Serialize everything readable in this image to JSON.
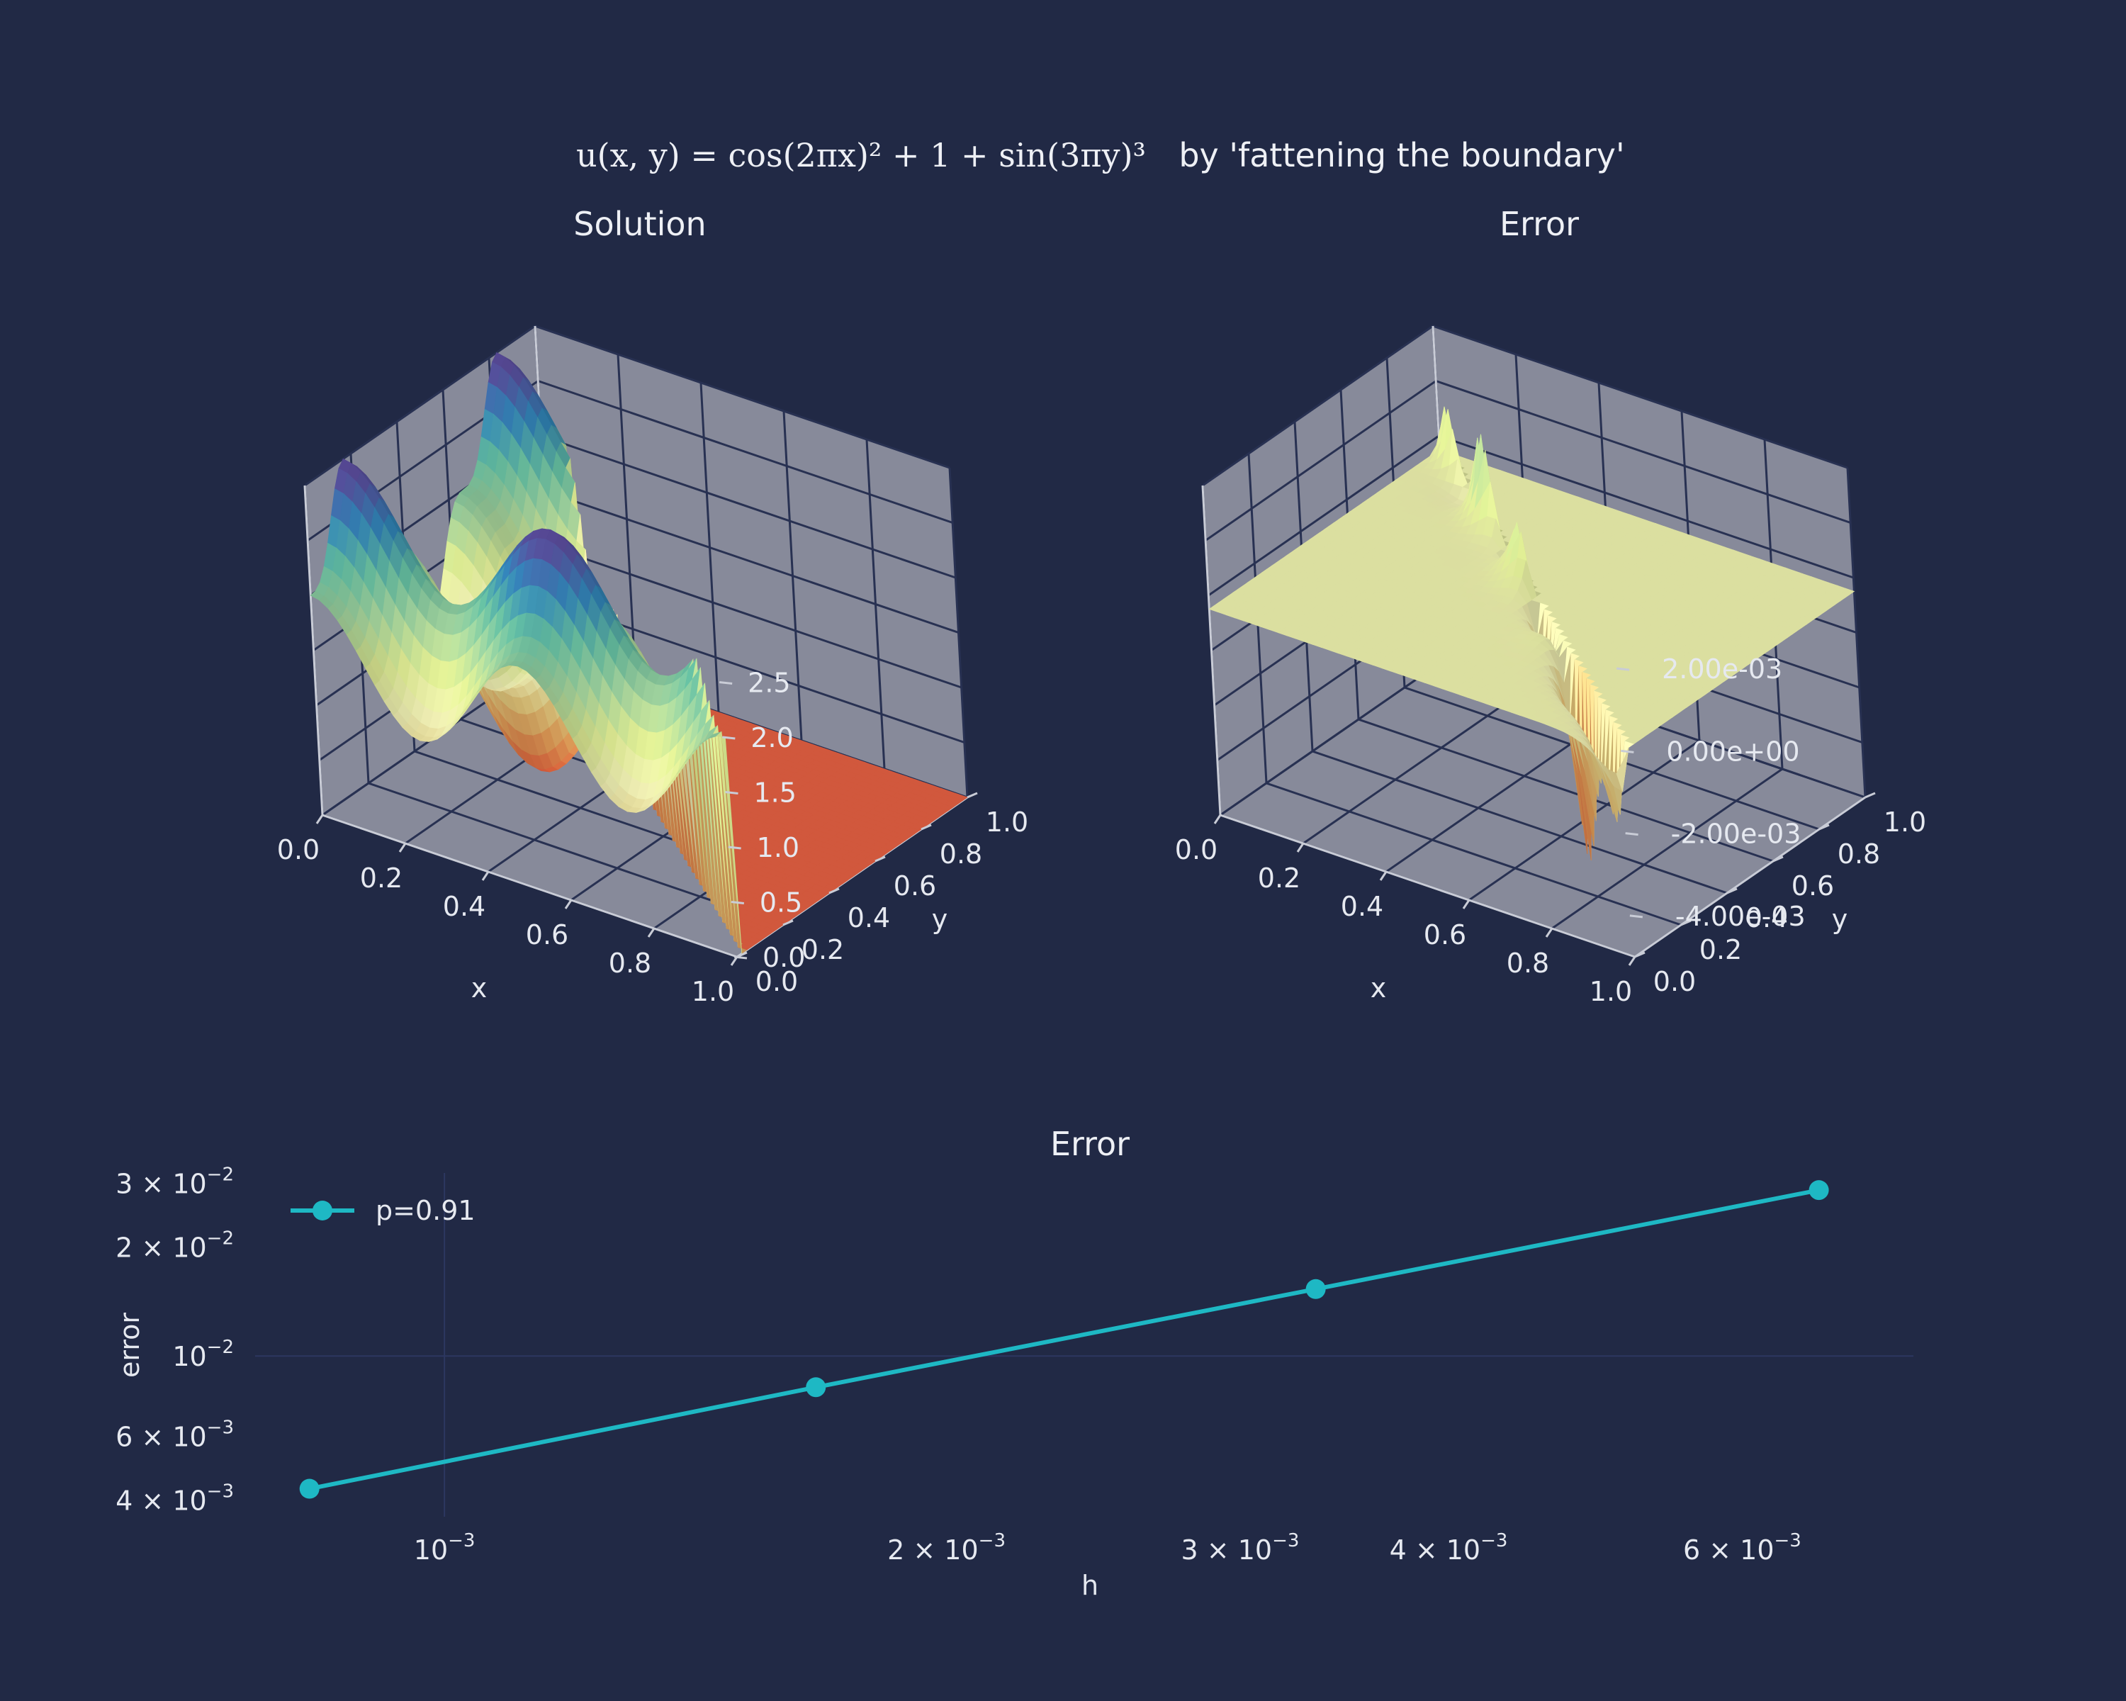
{
  "figure": {
    "formula_text": "u(x, y) = cos(2πx)² + 1 + sin(3πy)³",
    "title_suffix": "by 'fattening the boundary'"
  },
  "colors": {
    "background": "#212945",
    "pane": "#878a9a",
    "pane_grid": "#283152",
    "line": "#1eb8c4",
    "flat_region": "#9d0142"
  },
  "chart_data": [
    {
      "type": "surface",
      "title": "Solution",
      "xlabel": "x",
      "ylabel": "y",
      "x_ticks": [
        "0.0",
        "0.2",
        "0.4",
        "0.6",
        "0.8",
        "1.0"
      ],
      "y_ticks": [
        "0.0",
        "0.2",
        "0.4",
        "0.6",
        "0.8",
        "1.0"
      ],
      "z_ticks": [
        "0.0",
        "0.5",
        "1.0",
        "1.5",
        "2.0",
        "2.5"
      ],
      "zlim": [
        0,
        3
      ],
      "colormap": "Spectral"
    },
    {
      "type": "surface",
      "title": "Error",
      "xlabel": "x",
      "ylabel": "y",
      "x_ticks": [
        "0.0",
        "0.2",
        "0.4",
        "0.6",
        "0.8",
        "1.0"
      ],
      "y_ticks": [
        "0.0",
        "0.2",
        "0.4",
        "0.6",
        "0.8",
        "1.0"
      ],
      "z_ticks": [
        "2.00e-03",
        "0.00e+00",
        "-2.00e-03",
        "-4.00e-03"
      ],
      "zlim": [
        -0.005,
        0.003
      ],
      "colormap": "Spectral"
    },
    {
      "type": "line",
      "title": "Error",
      "xlabel": "h",
      "ylabel": "error",
      "xscale": "log",
      "yscale": "log",
      "xlim": [
        0.00077,
        0.0076
      ],
      "ylim": [
        0.0036,
        0.032
      ],
      "legend": "top-left",
      "series": [
        {
          "name": "p=0.91",
          "x": [
            0.00083,
            0.00167,
            0.00333,
            0.00667
          ],
          "y": [
            0.0043,
            0.0082,
            0.0153,
            0.0287
          ]
        }
      ],
      "x_ticks": [
        {
          "value": 0.001,
          "mant": "",
          "exp": "−3"
        },
        {
          "value": 0.002,
          "mant": "2 × ",
          "exp": "−3"
        },
        {
          "value": 0.003,
          "mant": "3 × ",
          "exp": "−3"
        },
        {
          "value": 0.004,
          "mant": "4 × ",
          "exp": "−3"
        },
        {
          "value": 0.006,
          "mant": "6 × ",
          "exp": "−3"
        }
      ],
      "y_ticks": [
        {
          "value": 0.03,
          "mant": "3 × ",
          "exp": "−2"
        },
        {
          "value": 0.02,
          "mant": "2 × ",
          "exp": "−2"
        },
        {
          "value": 0.01,
          "mant": "",
          "exp": "−2"
        },
        {
          "value": 0.006,
          "mant": "6 × ",
          "exp": "−3"
        },
        {
          "value": 0.004,
          "mant": "4 × ",
          "exp": "−3"
        }
      ]
    }
  ]
}
